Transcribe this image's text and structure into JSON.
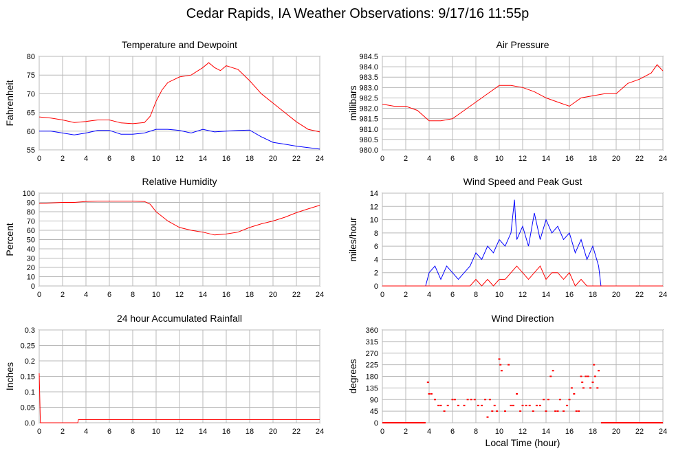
{
  "page": {
    "title": "Cedar Rapids, IA Weather Observations: 9/17/16 11:55p"
  },
  "chart_data": [
    {
      "id": "temp",
      "type": "line",
      "title": "Temperature and Dewpoint",
      "xlabel": "",
      "ylabel": "Fahrenheit",
      "xlim": [
        0,
        24
      ],
      "ylim": [
        55,
        80
      ],
      "xticks": [
        0,
        2,
        4,
        6,
        8,
        10,
        12,
        14,
        16,
        18,
        20,
        22,
        24
      ],
      "yticks": [
        55,
        60,
        65,
        70,
        75,
        80
      ],
      "grid": true,
      "series": [
        {
          "color": "#ff0000",
          "x": [
            0,
            1,
            2,
            3,
            4,
            5,
            6,
            7,
            8,
            9,
            9.5,
            10,
            10.5,
            11,
            12,
            13,
            14,
            14.5,
            15,
            15.5,
            16,
            16.5,
            17,
            18,
            19,
            20,
            21,
            22,
            23,
            24
          ],
          "y": [
            63.8,
            63.5,
            63,
            62.3,
            62.6,
            63,
            63,
            62.2,
            62,
            62.3,
            64,
            68,
            71,
            73,
            74.5,
            75,
            77,
            78.3,
            77,
            76.2,
            77.5,
            77,
            76.5,
            73.5,
            70,
            67.5,
            65,
            62.5,
            60.5,
            59.8
          ]
        },
        {
          "color": "#0000ff",
          "x": [
            0,
            1,
            2,
            3,
            4,
            5,
            6,
            7,
            8,
            9,
            10,
            11,
            12,
            13,
            14,
            15,
            16,
            17,
            18,
            19,
            20,
            21,
            22,
            23,
            24
          ],
          "y": [
            60,
            60,
            59.5,
            59,
            59.5,
            60.2,
            60.2,
            59.2,
            59.2,
            59.5,
            60.5,
            60.5,
            60.2,
            59.5,
            60.5,
            59.8,
            60,
            60.2,
            60.3,
            58.5,
            57,
            56.5,
            56,
            55.6,
            55.2
          ]
        }
      ]
    },
    {
      "id": "pressure",
      "type": "line",
      "title": "Air Pressure",
      "xlabel": "",
      "ylabel": "millibars",
      "xlim": [
        0,
        24
      ],
      "ylim": [
        980.0,
        984.5
      ],
      "xticks": [
        0,
        2,
        4,
        6,
        8,
        10,
        12,
        14,
        16,
        18,
        20,
        22,
        24
      ],
      "yticks": [
        980.0,
        980.5,
        981.0,
        981.5,
        982.0,
        982.5,
        983.0,
        983.5,
        984.0,
        984.5
      ],
      "ytick_labels": [
        "980.0",
        "980.5",
        "981.0",
        "981.5",
        "982.0",
        "982.5",
        "983.0",
        "983.5",
        "984.0",
        "984.5"
      ],
      "grid": true,
      "series": [
        {
          "color": "#ff0000",
          "x": [
            0,
            1,
            2,
            3,
            4,
            5,
            6,
            7,
            8,
            9,
            10,
            11,
            12,
            13,
            14,
            15,
            16,
            17,
            18,
            19,
            20,
            21,
            22,
            23,
            23.5,
            24
          ],
          "y": [
            982.2,
            982.1,
            982.1,
            981.9,
            981.4,
            981.4,
            981.5,
            981.9,
            982.3,
            982.7,
            983.1,
            983.1,
            983.0,
            982.8,
            982.5,
            982.3,
            982.1,
            982.5,
            982.6,
            982.7,
            982.7,
            983.2,
            983.4,
            983.7,
            984.1,
            983.8
          ]
        }
      ]
    },
    {
      "id": "rh",
      "type": "line",
      "title": "Relative Humidity",
      "xlabel": "",
      "ylabel": "Percent",
      "xlim": [
        0,
        24
      ],
      "ylim": [
        0,
        100
      ],
      "xticks": [
        0,
        2,
        4,
        6,
        8,
        10,
        12,
        14,
        16,
        18,
        20,
        22,
        24
      ],
      "yticks": [
        0,
        10,
        20,
        30,
        40,
        50,
        60,
        70,
        80,
        90,
        100
      ],
      "grid": true,
      "series": [
        {
          "color": "#ff0000",
          "x": [
            0,
            1,
            2,
            3,
            4,
            5,
            6,
            7,
            8,
            9,
            9.5,
            10,
            11,
            12,
            13,
            14,
            15,
            16,
            17,
            18,
            19,
            20,
            21,
            22,
            23,
            24
          ],
          "y": [
            89,
            89.5,
            90,
            90,
            91,
            91.5,
            91.5,
            91.5,
            91.5,
            91,
            88,
            80,
            70,
            63,
            60,
            58,
            55,
            56,
            58,
            63,
            67,
            70,
            74,
            79,
            83,
            87
          ]
        }
      ]
    },
    {
      "id": "wind",
      "type": "line",
      "title": "Wind Speed and Peak Gust",
      "xlabel": "",
      "ylabel": "miles/hour",
      "xlim": [
        0,
        24
      ],
      "ylim": [
        0,
        14
      ],
      "xticks": [
        0,
        2,
        4,
        6,
        8,
        10,
        12,
        14,
        16,
        18,
        20,
        22,
        24
      ],
      "yticks": [
        0,
        2,
        4,
        6,
        8,
        10,
        12,
        14
      ],
      "grid": true,
      "series": [
        {
          "color": "#0000ff",
          "x": [
            0,
            3.7,
            4,
            4.5,
            5,
            5.5,
            6,
            6.5,
            7,
            7.5,
            8,
            8.5,
            9,
            9.5,
            10,
            10.5,
            11,
            11.3,
            11.5,
            12,
            12.5,
            13,
            13.5,
            14,
            14.5,
            15,
            15.5,
            16,
            16.5,
            17,
            17.5,
            18,
            18.5,
            18.7,
            19,
            24
          ],
          "y": [
            0,
            0,
            2,
            3,
            1,
            3,
            2,
            1,
            2,
            3,
            5,
            4,
            6,
            5,
            7,
            6,
            8,
            13,
            7,
            9,
            6,
            11,
            7,
            10,
            8,
            9,
            7,
            8,
            5,
            7,
            4,
            6,
            3,
            0,
            0,
            0
          ]
        },
        {
          "color": "#ff0000",
          "x": [
            0,
            7.5,
            8,
            8.5,
            9,
            9.5,
            10,
            10.5,
            11,
            11.5,
            12,
            12.5,
            13,
            13.5,
            14,
            14.5,
            15,
            15.5,
            16,
            16.5,
            17,
            17.5,
            18,
            24
          ],
          "y": [
            0,
            0,
            1,
            0,
            1,
            0,
            1,
            1,
            2,
            3,
            2,
            1,
            2,
            3,
            1,
            2,
            2,
            1,
            2,
            0,
            1,
            0,
            0,
            0
          ]
        }
      ]
    },
    {
      "id": "rain",
      "type": "line",
      "title": "24 hour Accumulated Rainfall",
      "xlabel": "",
      "ylabel": "Inches",
      "xlim": [
        0,
        24
      ],
      "ylim": [
        0,
        0.3
      ],
      "xticks": [
        0,
        2,
        4,
        6,
        8,
        10,
        12,
        14,
        16,
        18,
        20,
        22,
        24
      ],
      "yticks": [
        0,
        0.05,
        0.1,
        0.15,
        0.2,
        0.25,
        0.3
      ],
      "ytick_labels": [
        "0.0",
        "0.05",
        "0.1",
        "0.15",
        "0.2",
        "0.25",
        "0.3"
      ],
      "grid": true,
      "series": [
        {
          "color": "#ff0000",
          "x": [
            0,
            0.1,
            3.3,
            3.35,
            24
          ],
          "y": [
            0.16,
            0,
            0,
            0.01,
            0.01
          ]
        }
      ]
    },
    {
      "id": "dir",
      "type": "scatter",
      "title": "Wind Direction",
      "xlabel": "Local Time (hour)",
      "ylabel": "degrees",
      "xlim": [
        0,
        24
      ],
      "ylim": [
        0,
        360
      ],
      "xticks": [
        0,
        2,
        4,
        6,
        8,
        10,
        12,
        14,
        16,
        18,
        20,
        22,
        24
      ],
      "yticks": [
        0,
        45,
        90,
        135,
        180,
        225,
        270,
        315,
        360
      ],
      "grid": true,
      "series": [
        {
          "color": "#ff0000",
          "x": [
            3.9,
            4,
            4.2,
            4.5,
            4.8,
            5,
            5.3,
            5.6,
            6,
            6.2,
            6.5,
            7,
            7.3,
            7.6,
            7.9,
            8.2,
            8.5,
            8.8,
            9,
            9.2,
            9.4,
            9.6,
            9.8,
            10,
            10.1,
            10.2,
            10.5,
            10.8,
            11,
            11.2,
            11.5,
            11.8,
            12,
            12.3,
            12.6,
            12.9,
            13.2,
            13.5,
            13.8,
            14,
            14.2,
            14.4,
            14.6,
            14.8,
            15,
            15.2,
            15.5,
            15.8,
            16,
            16.2,
            16.4,
            16.6,
            16.8,
            17,
            17.1,
            17.2,
            17.4,
            17.6,
            17.8,
            18,
            18.1,
            18.2,
            18.4,
            18.5
          ],
          "y": [
            157,
            112,
            112,
            90,
            67,
            67,
            45,
            67,
            90,
            90,
            67,
            67,
            90,
            90,
            90,
            67,
            67,
            90,
            22,
            90,
            45,
            67,
            45,
            247,
            225,
            202,
            45,
            225,
            67,
            67,
            112,
            45,
            67,
            67,
            67,
            45,
            67,
            67,
            90,
            45,
            90,
            180,
            202,
            45,
            45,
            90,
            45,
            67,
            90,
            135,
            112,
            45,
            45,
            180,
            157,
            135,
            180,
            180,
            135,
            157,
            225,
            180,
            135,
            202
          ]
        }
      ]
    }
  ]
}
